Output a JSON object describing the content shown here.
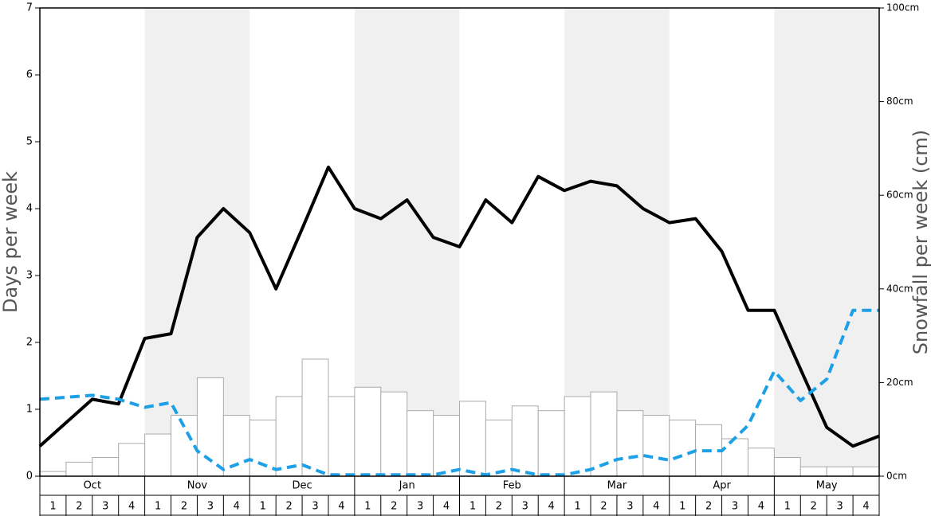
{
  "chart_data": {
    "type": "bar-line",
    "y_label": "Days per week",
    "y2_label": "Snowfall per week (cm)",
    "months": [
      "Oct",
      "Nov",
      "Dec",
      "Jan",
      "Feb",
      "Mar",
      "Apr",
      "May"
    ],
    "week_labels": [
      "1",
      "2",
      "3",
      "4"
    ],
    "shaded_months": [
      false,
      true,
      false,
      true,
      false,
      true,
      false,
      true
    ],
    "shade_color": "#f0f0f0",
    "ylim": [
      0,
      7
    ],
    "yticks": [
      0,
      1,
      2,
      3,
      4,
      5,
      6,
      7
    ],
    "y2lim": [
      0,
      100
    ],
    "y2ticks": [
      {
        "value": 0,
        "label": "0cm"
      },
      {
        "value": 20,
        "label": "20cm"
      },
      {
        "value": 40,
        "label": "40cm"
      },
      {
        "value": 60,
        "label": "60cm"
      },
      {
        "value": 80,
        "label": "80cm"
      },
      {
        "value": 100,
        "label": "100cm"
      }
    ],
    "bars": {
      "axis": "y2",
      "color": "#ffffff",
      "stroke": "#aaaaaa",
      "values": [
        1,
        3,
        4,
        7,
        9,
        13,
        21,
        13,
        12,
        17,
        25,
        17,
        19,
        18,
        14,
        13,
        16,
        12,
        15,
        14,
        17,
        18,
        14,
        13,
        12,
        11,
        8,
        6,
        4,
        2,
        2,
        2
      ]
    },
    "lines": [
      {
        "color": "#000000",
        "dashed": false,
        "values": [
          0.45,
          0.8,
          1.15,
          1.08,
          2.06,
          2.13,
          3.57,
          4.0,
          3.64,
          2.8,
          3.7,
          4.62,
          4.0,
          3.85,
          4.13,
          3.57,
          3.43,
          4.13,
          3.79,
          4.48,
          4.27,
          4.41,
          4.34,
          4.0,
          3.79,
          3.85,
          3.36,
          2.48,
          2.48,
          1.6,
          0.73,
          0.45,
          0.6
        ]
      },
      {
        "color": "#1ea0e6",
        "dashed": true,
        "values": [
          1.15,
          1.18,
          1.21,
          1.15,
          1.03,
          1.1,
          0.38,
          0.1,
          0.25,
          0.1,
          0.17,
          0.02,
          0.02,
          0.02,
          0.02,
          0.02,
          0.1,
          0.02,
          0.1,
          0.02,
          0.02,
          0.1,
          0.25,
          0.31,
          0.24,
          0.38,
          0.38,
          0.76,
          1.57,
          1.13,
          1.45,
          2.48,
          2.48
        ]
      }
    ]
  }
}
